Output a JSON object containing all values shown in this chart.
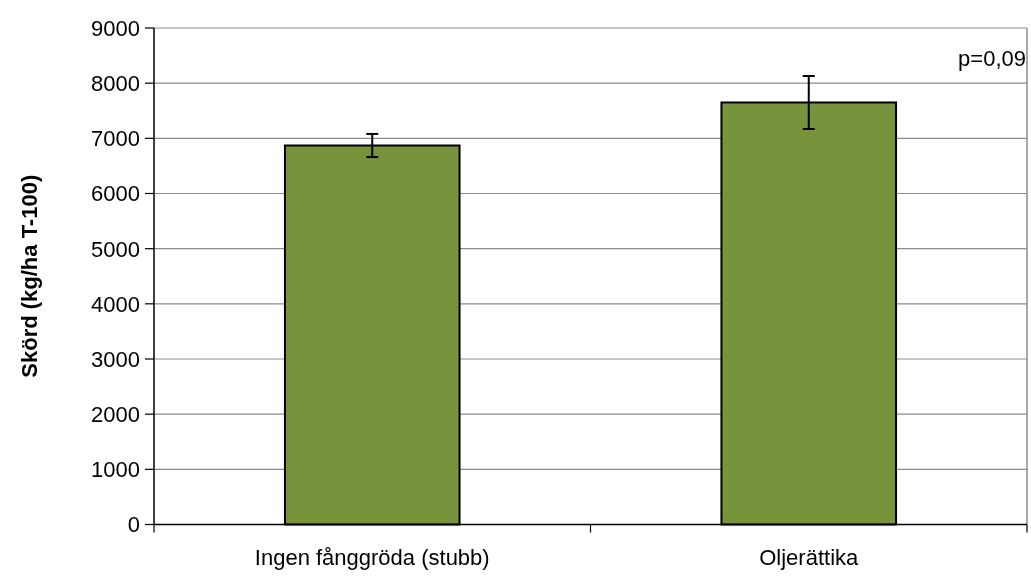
{
  "chart_data": {
    "type": "bar",
    "ylabel": "Skörd (kg/ha T-100)",
    "categories": [
      "Ingen fånggröda (stubb)",
      "Oljerättika"
    ],
    "values": [
      6870,
      7650
    ],
    "errors": [
      210,
      480
    ],
    "color": "#77933c",
    "ylim": [
      0,
      9000
    ],
    "yticks": [
      0,
      1000,
      2000,
      3000,
      4000,
      5000,
      6000,
      7000,
      8000,
      9000
    ],
    "grid": "y",
    "annotations": [
      "p=0,09"
    ]
  }
}
